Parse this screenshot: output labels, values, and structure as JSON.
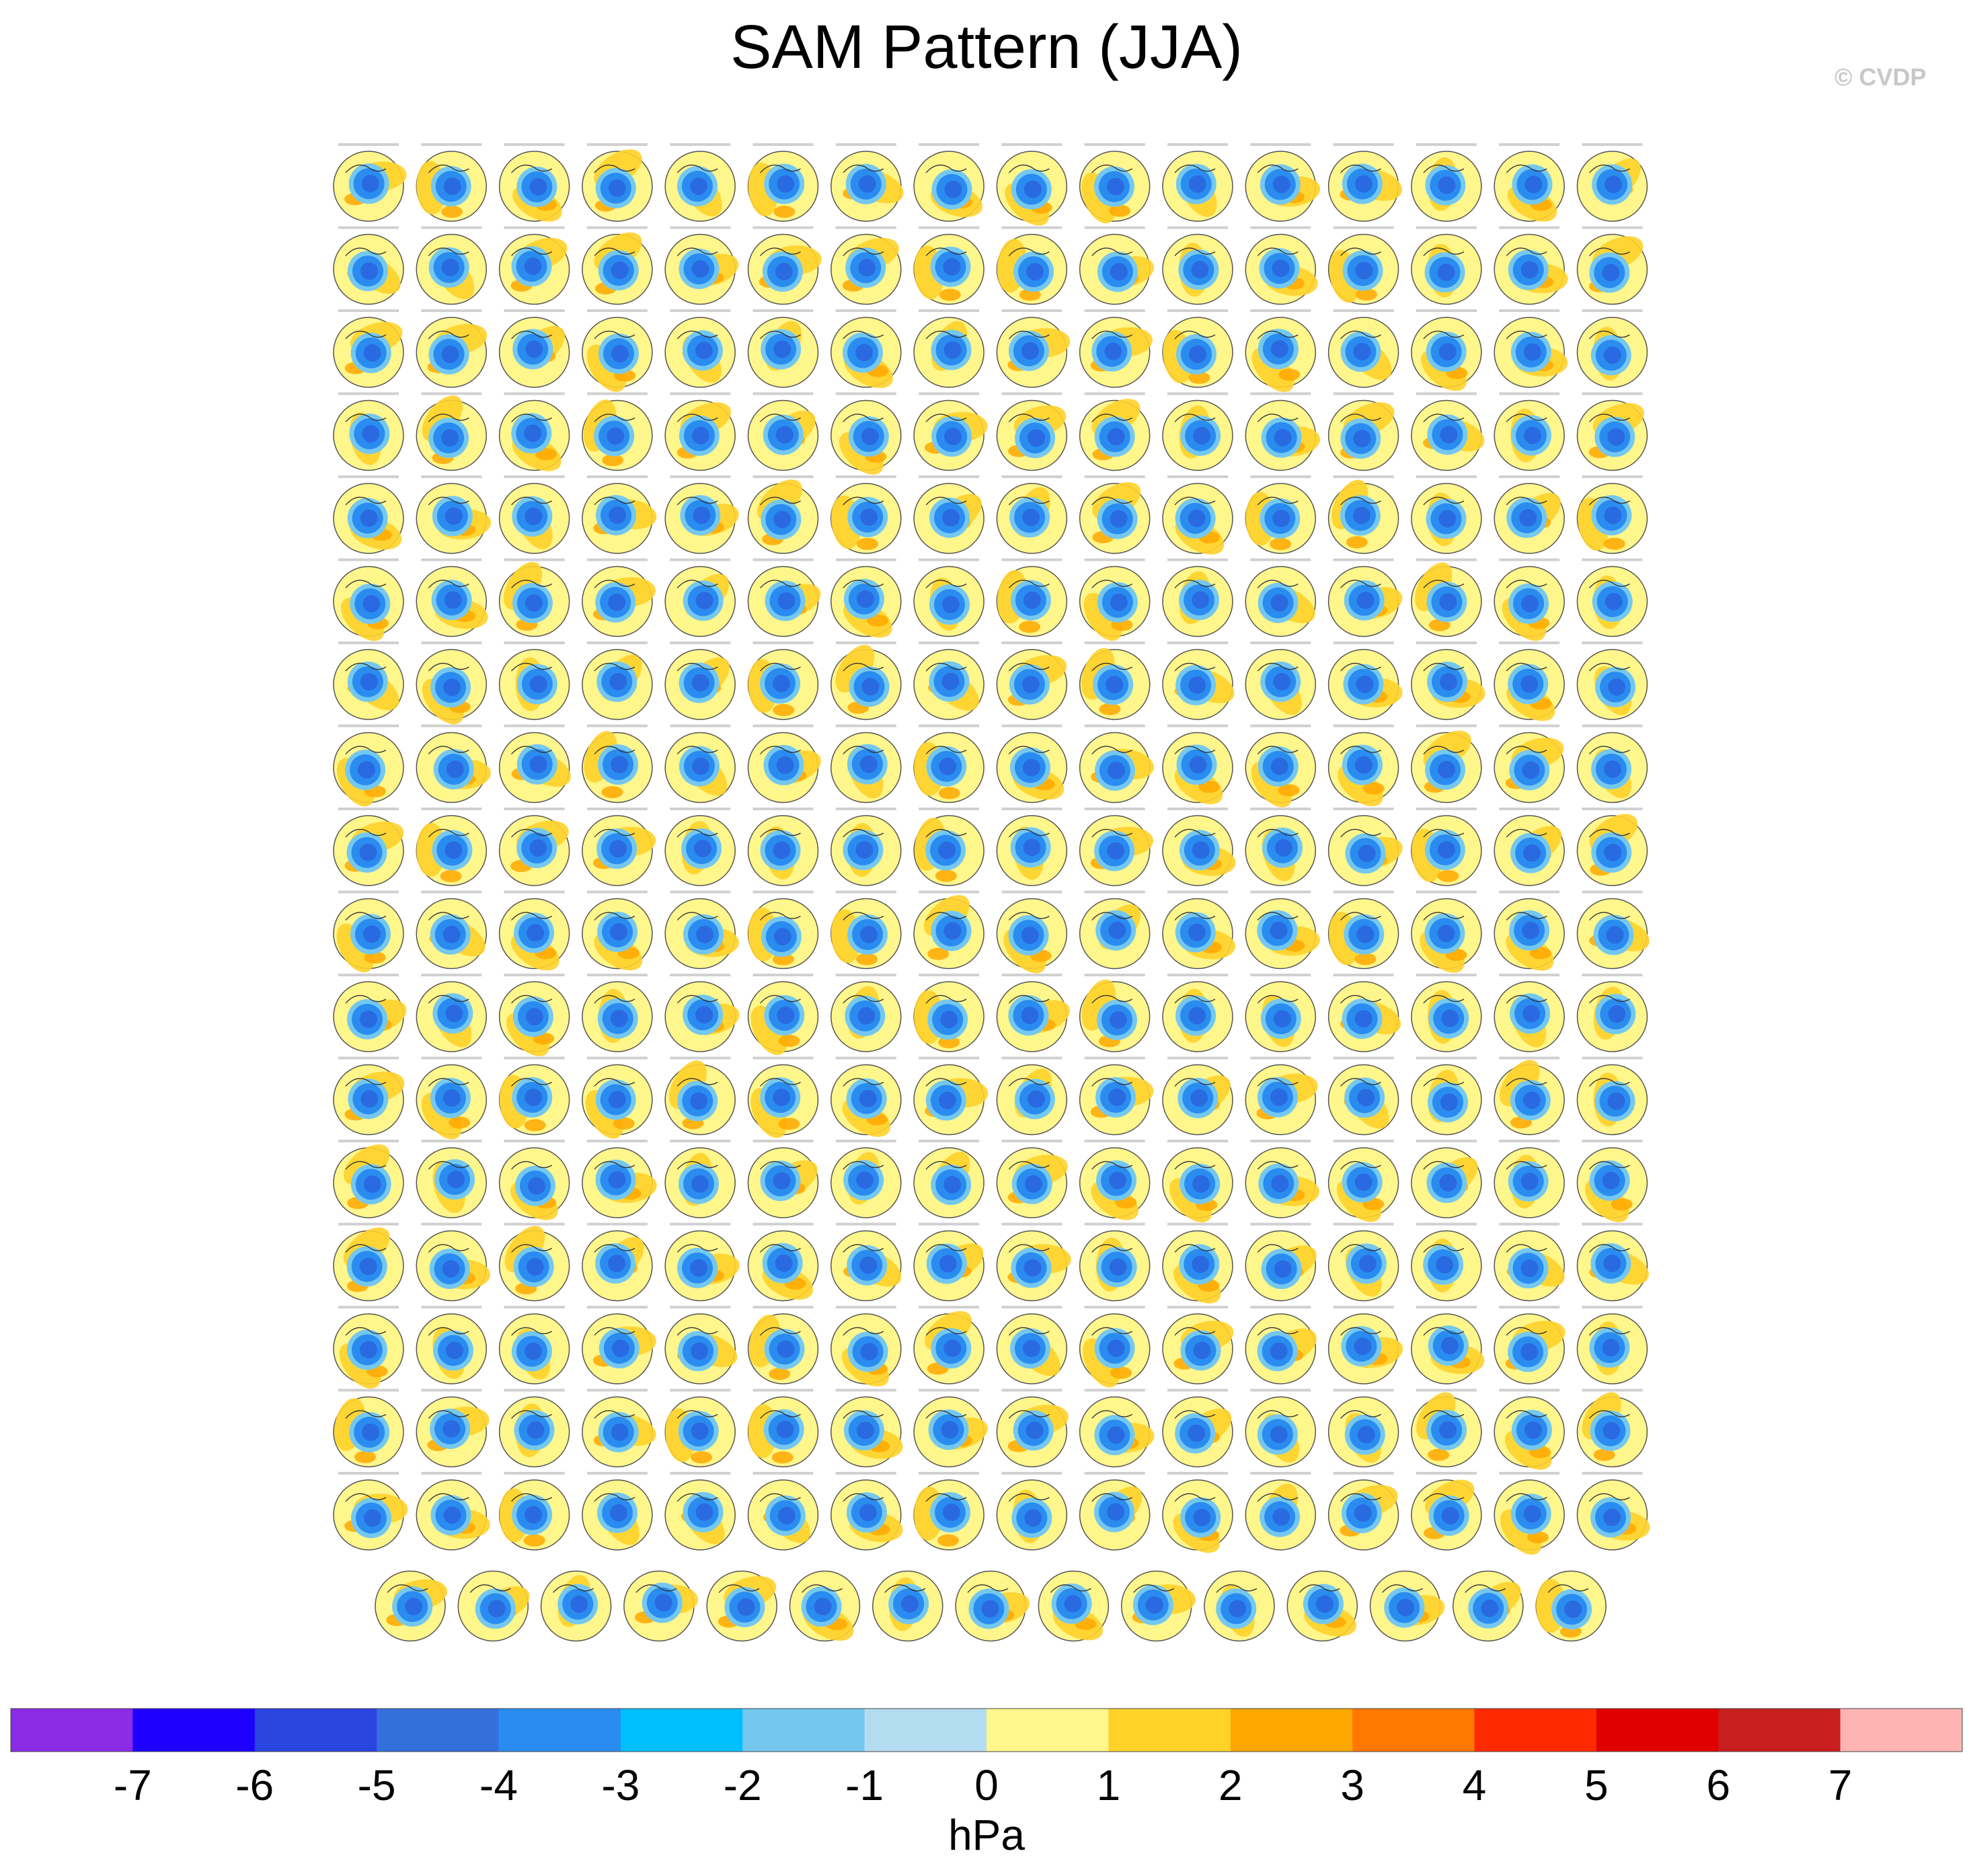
{
  "figure": {
    "title": "SAM Pattern (JJA)",
    "credit": "© CVDP"
  },
  "chart_data": {
    "type": "heatmap",
    "description_kind": "grid of polar-projection SLP regression maps (Southern Hemisphere)",
    "panel_rows": 18,
    "full_row_panels": 16,
    "last_row_panels": 15,
    "colorbar": {
      "label": "hPa",
      "tick_labels": [
        "-7",
        "-6",
        "-5",
        "-4",
        "-3",
        "-2",
        "-1",
        "0",
        "1",
        "2",
        "3",
        "4",
        "5",
        "6",
        "7"
      ],
      "colors": [
        "#8a2be6",
        "#1e00ff",
        "#2a44e0",
        "#3470dc",
        "#2a8cf0",
        "#00bfff",
        "#74c8f0",
        "#b4dcf0",
        "#fff68c",
        "#ffd22a",
        "#ffa800",
        "#ff7800",
        "#ff2a00",
        "#e00000",
        "#c81e1e",
        "#ffb4b4"
      ]
    },
    "map_colors": {
      "center": "#2a6ae0",
      "inner": "#2a8cf0",
      "ring": "#74c8f0",
      "background": "#fff68c",
      "positive": "#ffd22a",
      "strong_positive": "#ffa800"
    }
  }
}
